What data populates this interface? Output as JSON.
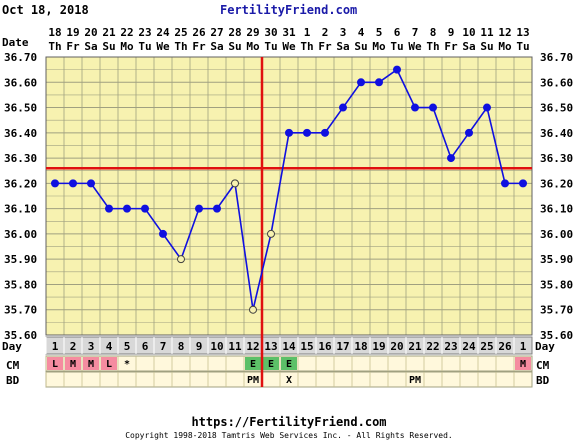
{
  "header": {
    "date_text": "Oct 18, 2018",
    "brand": "FertilityFriend.com"
  },
  "footer": {
    "url": "https://FertilityFriend.com",
    "copyright": "Copyright 1998-2018 Tamtris Web Services Inc. - All Rights Reserved."
  },
  "row_labels": {
    "date": "Date",
    "day": "Day",
    "cm": "CM",
    "bd": "BD"
  },
  "chart_data": {
    "type": "line",
    "dates": [
      "18",
      "19",
      "20",
      "21",
      "22",
      "23",
      "24",
      "25",
      "26",
      "27",
      "28",
      "29",
      "30",
      "31",
      "1",
      "2",
      "3",
      "4",
      "5",
      "6",
      "7",
      "8",
      "9",
      "10",
      "11",
      "12",
      "13"
    ],
    "weekdays": [
      "Th",
      "Fr",
      "Sa",
      "Su",
      "Mo",
      "Tu",
      "We",
      "Th",
      "Fr",
      "Sa",
      "Su",
      "Mo",
      "Tu",
      "We",
      "Th",
      "Fr",
      "Sa",
      "Su",
      "Mo",
      "Tu",
      "We",
      "Th",
      "Fr",
      "Sa",
      "Su",
      "Mo",
      "Tu"
    ],
    "cycle_days": [
      "1",
      "2",
      "3",
      "4",
      "5",
      "6",
      "7",
      "8",
      "9",
      "10",
      "11",
      "12",
      "13",
      "14",
      "15",
      "16",
      "17",
      "18",
      "19",
      "20",
      "21",
      "22",
      "23",
      "24",
      "25",
      "26",
      "1"
    ],
    "temperatures": [
      36.2,
      36.2,
      36.2,
      36.1,
      36.1,
      36.1,
      36.0,
      35.9,
      36.1,
      36.1,
      36.2,
      35.7,
      36.0,
      36.4,
      36.4,
      36.4,
      36.5,
      36.6,
      36.6,
      36.65,
      36.5,
      36.5,
      36.3,
      36.4,
      36.5,
      36.2,
      36.2
    ],
    "open_point_indices": [
      7,
      10,
      11,
      12
    ],
    "yticks": [
      "35.60",
      "35.70",
      "35.80",
      "35.90",
      "36.00",
      "36.10",
      "36.20",
      "36.30",
      "36.40",
      "36.50",
      "36.60",
      "36.70"
    ],
    "ylim": [
      35.6,
      36.7
    ],
    "coverline": 36.26,
    "ovulation_day_index": 12,
    "cervical_mucus": [
      "L",
      "M",
      "M",
      "L",
      "*",
      "",
      "",
      "",
      "",
      "",
      "",
      "E",
      "E",
      "E",
      "",
      "",
      "",
      "",
      "",
      "",
      "",
      "",
      "",
      "",
      "",
      "",
      "M"
    ],
    "intercourse": [
      "",
      "",
      "",
      "",
      "",
      "",
      "",
      "",
      "",
      "",
      "",
      "PM",
      "",
      "X",
      "",
      "",
      "",
      "",
      "",
      "",
      "PM",
      "",
      "",
      "",
      "",
      "",
      ""
    ],
    "colors": {
      "plot_bg": "#f7f2b0",
      "grid": "#a0a080",
      "line": "#1010e0",
      "coverline": "#e01010",
      "ovulation": "#e01010",
      "day_row_bg": "#d8d8d8",
      "cm_light_pink": "#f58ca0",
      "cm_egg_green": "#5cc068",
      "row_bg": "#fff8dc"
    }
  }
}
